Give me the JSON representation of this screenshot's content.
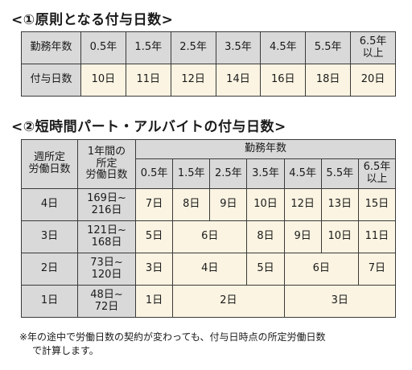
{
  "section1": {
    "heading": "<①原則となる付与日数>",
    "row_header_years": "勤務年数",
    "row_header_days": "付与日数",
    "years": [
      "0.5年",
      "1.5年",
      "2.5年",
      "3.5年",
      "4.5年",
      "5.5年",
      "6.5年\n以上"
    ],
    "days": [
      "10日",
      "11日",
      "12日",
      "14日",
      "16日",
      "18日",
      "20日"
    ]
  },
  "section2": {
    "heading": "<②短時間パート・アルバイトの付与日数>",
    "col_weekly": "週所定\n労働日数",
    "col_annual": "1年間の\n所定\n労働日数",
    "col_years_group": "勤務年数",
    "years": [
      "0.5年",
      "1.5年",
      "2.5年",
      "3.5年",
      "4.5年",
      "5.5年",
      "6.5年\n以上"
    ],
    "rows": [
      {
        "weekly": "4日",
        "annual": "169日~\n216日",
        "cells": [
          "7日",
          "8日",
          "9日",
          "10日",
          "12日",
          "13日",
          "15日"
        ]
      },
      {
        "weekly": "3日",
        "annual": "121日~\n168日",
        "cells": [
          "5日",
          "6日",
          "8日",
          "9日",
          "10日",
          "11日"
        ]
      },
      {
        "weekly": "2日",
        "annual": "73日~\n120日",
        "cells": [
          "3日",
          "4日",
          "5日",
          "6日",
          "7日"
        ]
      },
      {
        "weekly": "1日",
        "annual": "48日~\n72日",
        "cells": [
          "1日",
          "2日",
          "3日"
        ]
      }
    ]
  },
  "note": {
    "line1": "※年の途中で労働日数の契約が変わっても、付与日時点の所定労働日数",
    "line2": "で計算します。"
  }
}
